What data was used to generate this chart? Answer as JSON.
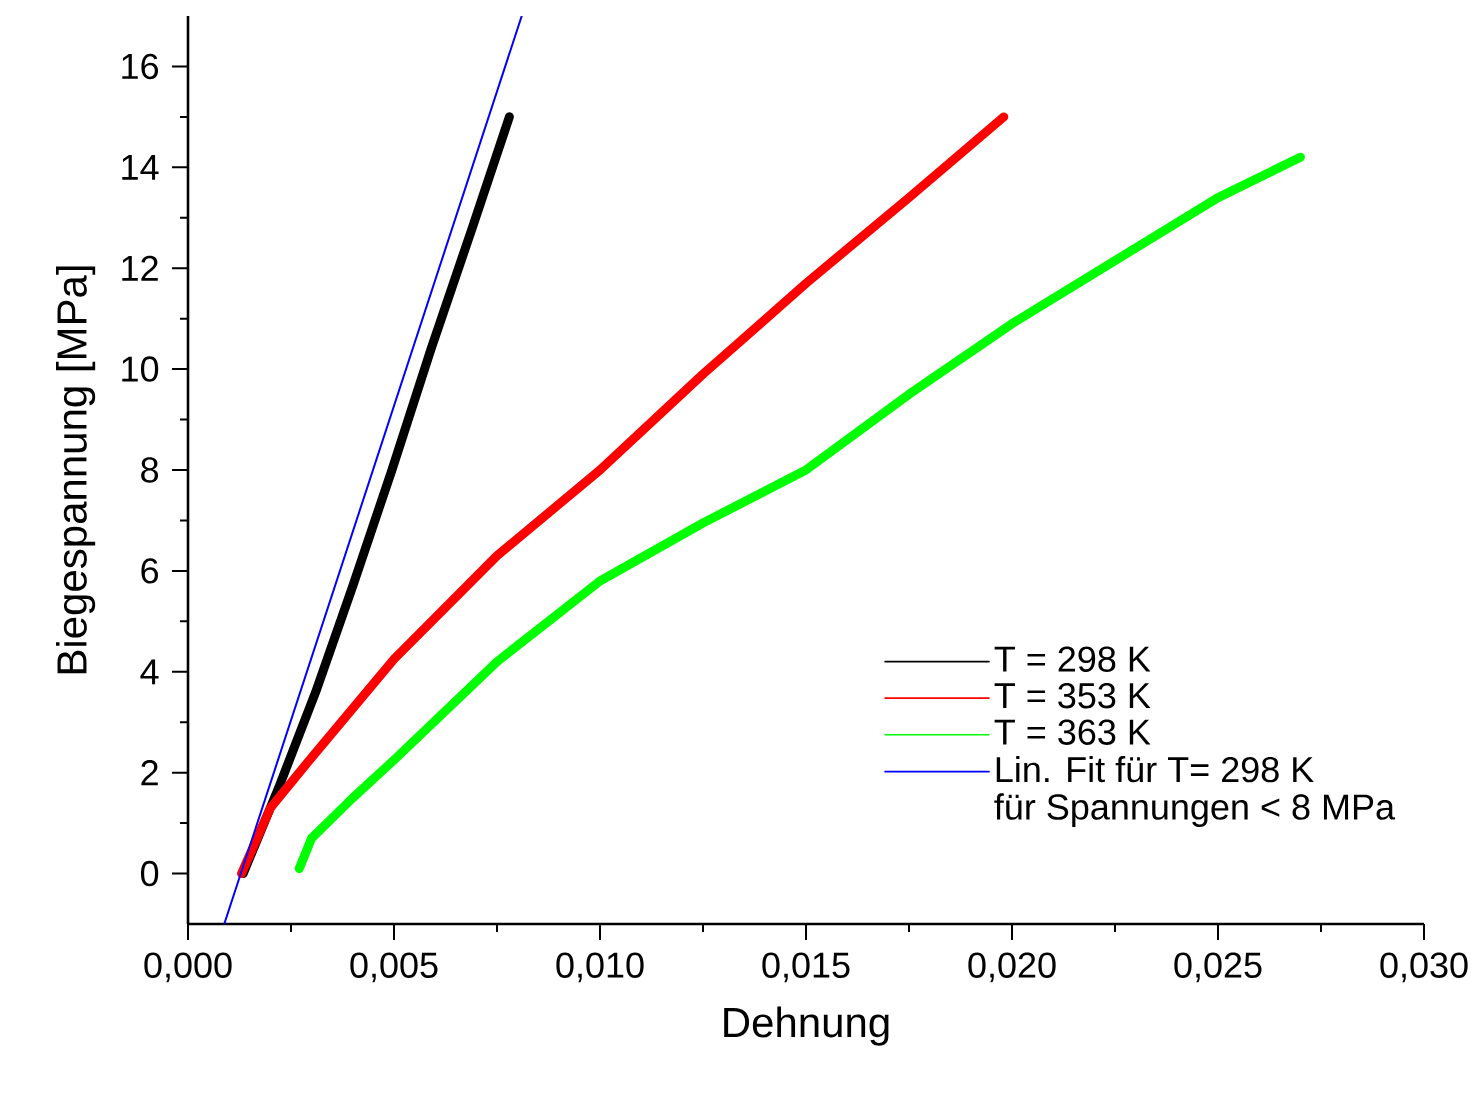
{
  "chart_data": {
    "type": "line",
    "xlabel": "Dehnung",
    "ylabel": "Biegespannung [MPa]",
    "xlim": [
      0,
      0.03
    ],
    "ylim": [
      -1,
      17
    ],
    "xticks": [
      {
        "value": 0,
        "label": "0,000"
      },
      {
        "value": 0.005,
        "label": "0,005"
      },
      {
        "value": 0.01,
        "label": "0,010"
      },
      {
        "value": 0.015,
        "label": "0,015"
      },
      {
        "value": 0.02,
        "label": "0,020"
      },
      {
        "value": 0.025,
        "label": "0,025"
      },
      {
        "value": 0.03,
        "label": "0,030"
      }
    ],
    "yticks": [
      0,
      2,
      4,
      6,
      8,
      10,
      12,
      14,
      16
    ],
    "legend": "bottom right",
    "grid": false,
    "marker": "none",
    "line_style": "solid",
    "annotations": [
      "für Spannungen < 8 MPa"
    ],
    "series": [
      {
        "name": "T = 298 K",
        "color": "#000000",
        "x": [
          0.00134,
          0.0022,
          0.0031,
          0.004,
          0.00495,
          0.0059,
          0.0069,
          0.0078
        ],
        "values": [
          0,
          1.7,
          3.6,
          5.7,
          8,
          10.4,
          12.8,
          15
        ]
      },
      {
        "name": "T = 353 K",
        "color": "#ff0000",
        "x": [
          0.0013,
          0.002,
          0.003,
          0.005,
          0.0075,
          0.01,
          0.0125,
          0.015,
          0.0175,
          0.0198
        ],
        "values": [
          0,
          1.3,
          2.3,
          4.25,
          6.3,
          8,
          9.9,
          11.7,
          13.4,
          15
        ]
      },
      {
        "name": "T = 363 K",
        "color": "#00ff00",
        "x": [
          0.0027,
          0.003,
          0.004,
          0.005,
          0.0075,
          0.01,
          0.0125,
          0.015,
          0.0175,
          0.02,
          0.0225,
          0.025,
          0.027
        ],
        "values": [
          0.1,
          0.7,
          1.5,
          2.25,
          4.2,
          5.8,
          6.95,
          8,
          9.5,
          10.9,
          12.15,
          13.4,
          14.2
        ]
      },
      {
        "name": "Lin. Fit für T= 298 K",
        "color": "#0000ff",
        "x": [
          0.00088,
          0.0081
        ],
        "values": [
          -1,
          17
        ]
      }
    ]
  }
}
